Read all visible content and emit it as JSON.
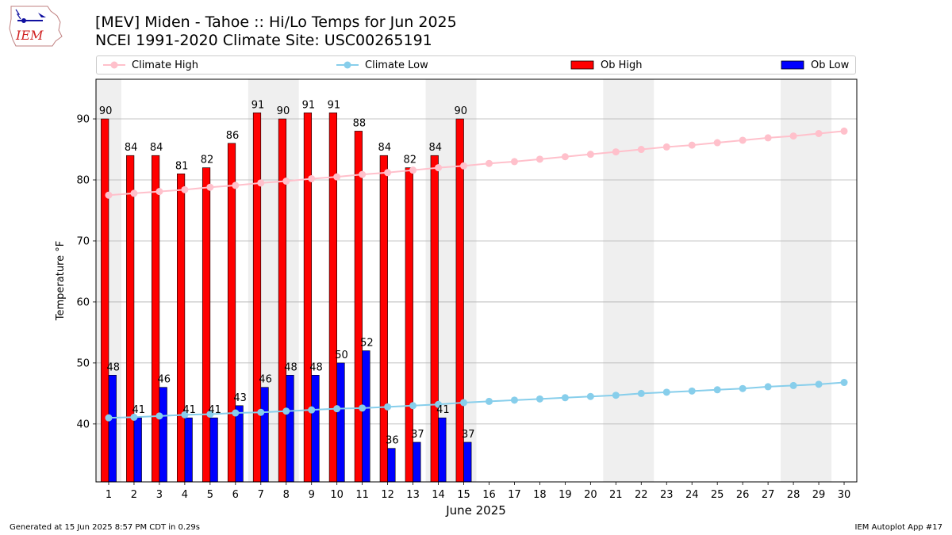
{
  "header": {
    "logo_text": "IEM",
    "title": "[MEV] Miden - Tahoe :: Hi/Lo Temps for Jun 2025",
    "subtitle": "NCEI 1991-2020 Climate Site: USC00265191"
  },
  "legend": {
    "climate_high": "Climate High",
    "climate_low": "Climate Low",
    "ob_high": "Ob High",
    "ob_low": "Ob Low"
  },
  "footer": {
    "generated": "Generated at 15 Jun 2025 8:57 PM CDT in 0.29s",
    "app": "IEM Autoplot App #17"
  },
  "colors": {
    "ob_high": "#ff0000",
    "ob_low": "#0000ff",
    "climate_high": "#ffc0cb",
    "climate_low": "#87ceeb",
    "weekend_band": "#efefef",
    "grid": "#b0b0b0"
  },
  "chart_data": {
    "type": "bar",
    "xlabel": "June 2025",
    "ylabel": "Temperature °F",
    "xlim": [
      0.5,
      30.5
    ],
    "ylim": [
      30.5,
      96.5
    ],
    "yticks": [
      40,
      50,
      60,
      70,
      80,
      90
    ],
    "grid": "y",
    "legend_position": "top",
    "days": [
      1,
      2,
      3,
      4,
      5,
      6,
      7,
      8,
      9,
      10,
      11,
      12,
      13,
      14,
      15,
      16,
      17,
      18,
      19,
      20,
      21,
      22,
      23,
      24,
      25,
      26,
      27,
      28,
      29,
      30
    ],
    "weekend_bands": [
      [
        1,
        1
      ],
      [
        7,
        8
      ],
      [
        14,
        15
      ],
      [
        21,
        22
      ],
      [
        28,
        29
      ]
    ],
    "ob_high": [
      90,
      84,
      84,
      81,
      82,
      86,
      91,
      90,
      91,
      91,
      88,
      84,
      82,
      84,
      90
    ],
    "ob_low": [
      48,
      41,
      46,
      41,
      41,
      43,
      46,
      48,
      48,
      50,
      52,
      36,
      37,
      41,
      37
    ],
    "climate_high": [
      77.5,
      77.8,
      78.1,
      78.4,
      78.8,
      79.1,
      79.5,
      79.8,
      80.2,
      80.5,
      80.9,
      81.2,
      81.6,
      82.0,
      82.3,
      82.7,
      83.0,
      83.4,
      83.8,
      84.2,
      84.6,
      85.0,
      85.4,
      85.7,
      86.1,
      86.5,
      86.9,
      87.2,
      87.6,
      88.0
    ],
    "climate_low": [
      41.0,
      41.1,
      41.3,
      41.5,
      41.6,
      41.8,
      41.9,
      42.1,
      42.3,
      42.5,
      42.6,
      42.8,
      43.0,
      43.2,
      43.5,
      43.7,
      43.9,
      44.1,
      44.3,
      44.5,
      44.7,
      45.0,
      45.2,
      45.4,
      45.6,
      45.8,
      46.1,
      46.3,
      46.5,
      46.8
    ]
  }
}
